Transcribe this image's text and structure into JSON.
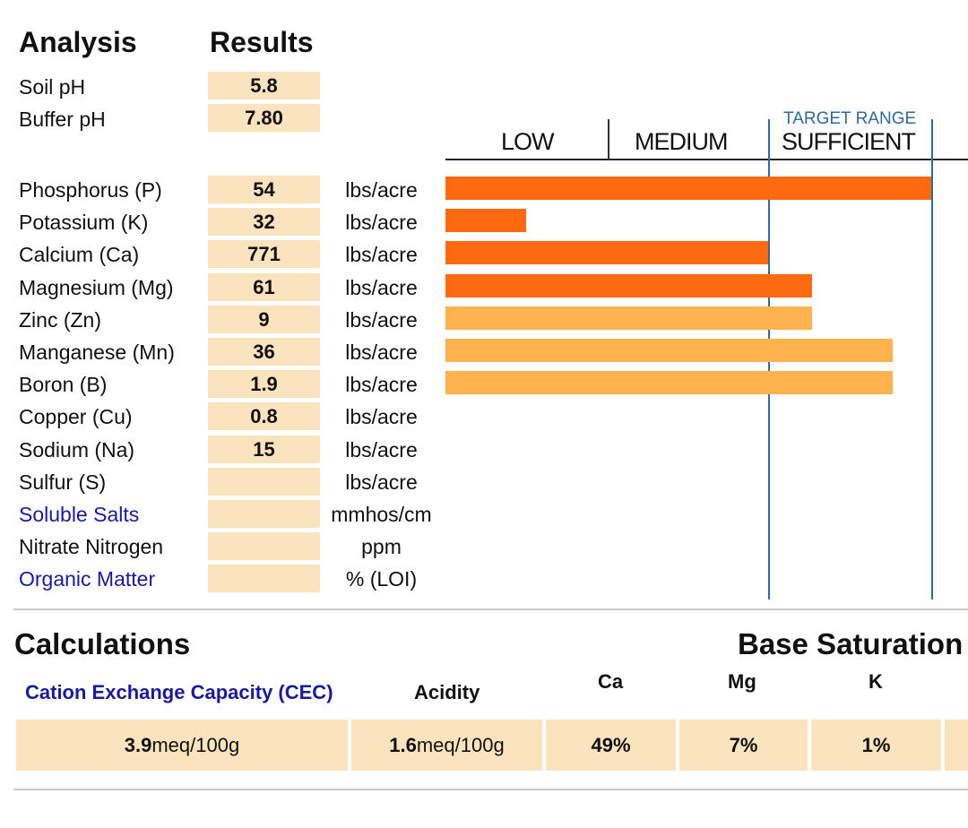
{
  "headers": {
    "analysis": "Analysis",
    "results": "Results"
  },
  "ph": [
    {
      "label": "Soil pH",
      "value": "5.8"
    },
    {
      "label": "Buffer pH",
      "value": "7.80"
    }
  ],
  "range": {
    "target_caption": "TARGET RANGE",
    "low": "LOW",
    "medium": "MEDIUM",
    "sufficient": "SUFFICIENT"
  },
  "nutrients": [
    {
      "label": "Phosphorus (P)",
      "value": "54",
      "unit": "lbs/acre",
      "level": 0.995,
      "bar_color": "dark",
      "link": false
    },
    {
      "label": "Potassium (K)",
      "value": "32",
      "unit": "lbs/acre",
      "level": 0.165,
      "bar_color": "dark",
      "link": false
    },
    {
      "label": "Calcium (Ca)",
      "value": "771",
      "unit": "lbs/acre",
      "level": 0.66,
      "bar_color": "dark",
      "link": false
    },
    {
      "label": "Magnesium (Mg)",
      "value": "61",
      "unit": "lbs/acre",
      "level": 0.75,
      "bar_color": "dark",
      "link": false
    },
    {
      "label": "Zinc (Zn)",
      "value": "9",
      "unit": "lbs/acre",
      "level": 0.75,
      "bar_color": "light",
      "link": false
    },
    {
      "label": "Manganese (Mn)",
      "value": "36",
      "unit": "lbs/acre",
      "level": 0.915,
      "bar_color": "light",
      "link": false
    },
    {
      "label": "Boron (B)",
      "value": "1.9",
      "unit": "lbs/acre",
      "level": 0.915,
      "bar_color": "light",
      "link": false
    },
    {
      "label": "Copper (Cu)",
      "value": "0.8",
      "unit": "lbs/acre",
      "level": null,
      "bar_color": "",
      "link": false
    },
    {
      "label": "Sodium (Na)",
      "value": "15",
      "unit": "lbs/acre",
      "level": null,
      "bar_color": "",
      "link": false
    },
    {
      "label": "Sulfur (S)",
      "value": "",
      "unit": "lbs/acre",
      "level": null,
      "bar_color": "",
      "link": false
    },
    {
      "label": "Soluble Salts",
      "value": "",
      "unit": "mmhos/cm",
      "level": null,
      "bar_color": "",
      "link": true
    },
    {
      "label": "Nitrate Nitrogen",
      "value": "",
      "unit": "ppm",
      "level": null,
      "bar_color": "",
      "link": false
    },
    {
      "label": "Organic Matter",
      "value": "",
      "unit": "% (LOI)",
      "level": null,
      "bar_color": "",
      "link": true
    }
  ],
  "colors": {
    "bar_dark": "#ff6a10",
    "bar_light": "#ffb24d",
    "cell_bg": "#fbe3bd",
    "link": "#1a1aa0",
    "range_line": "#2f6a9e"
  },
  "calculations": {
    "title": "Calculations",
    "base_saturation_title": "Base Saturation",
    "cec_label": "Cation Exchange Capacity (CEC)",
    "acidity_label": "Acidity",
    "ca_label": "Ca",
    "mg_label": "Mg",
    "k_label": "K",
    "cec_value": "3.9",
    "cec_unit": "meq/100g",
    "acidity_value": "1.6",
    "acidity_unit": "meq/100g",
    "ca_value": "49%",
    "mg_value": "7%",
    "k_value": "1%"
  }
}
